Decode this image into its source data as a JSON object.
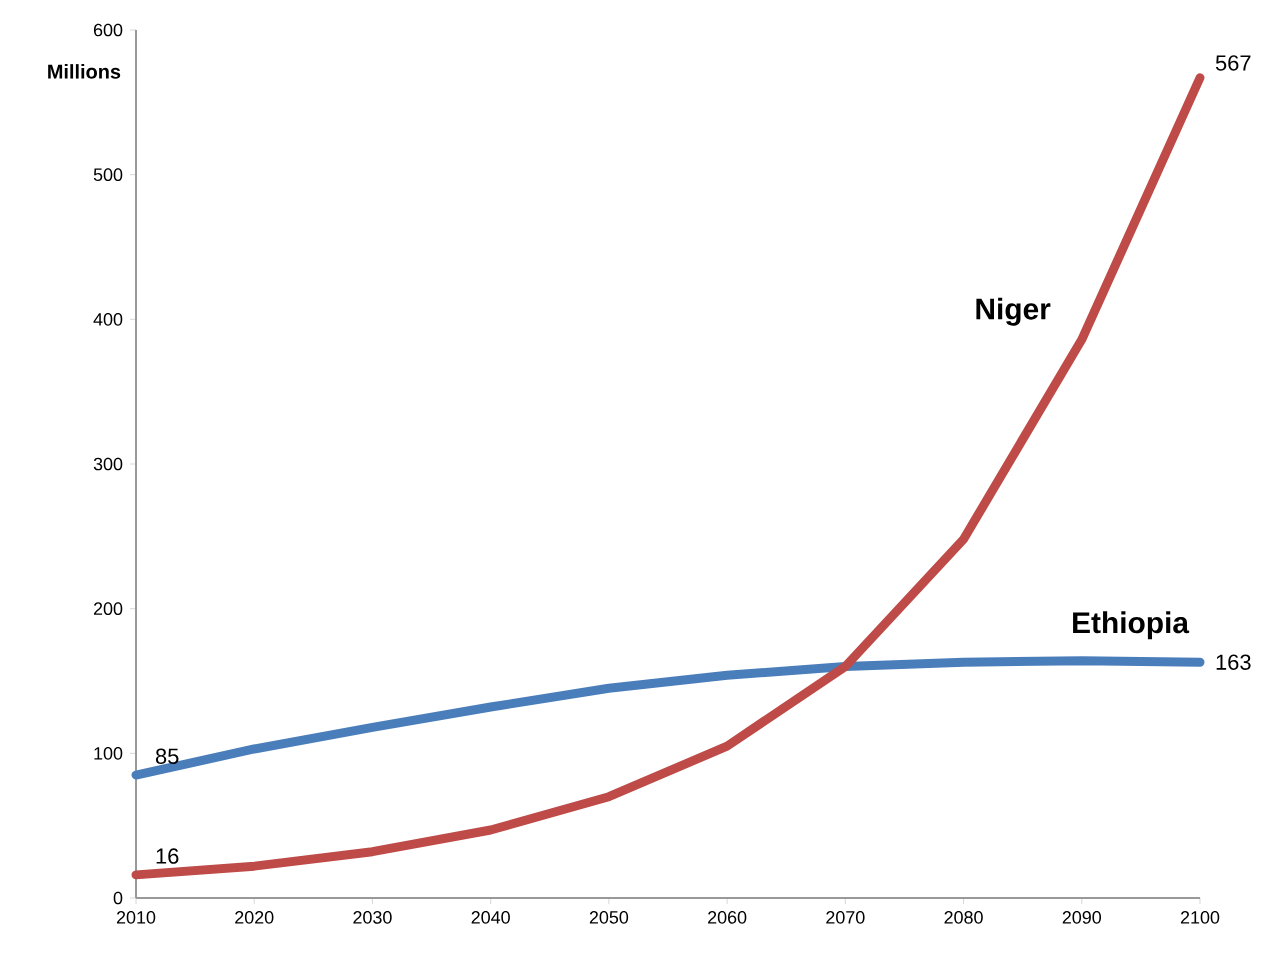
{
  "chart_data": {
    "type": "line",
    "ylabel": "Millions",
    "x": [
      2010,
      2020,
      2030,
      2040,
      2050,
      2060,
      2070,
      2080,
      2090,
      2100
    ],
    "xlim": [
      2010,
      2100
    ],
    "xticks": [
      2010,
      2020,
      2030,
      2040,
      2050,
      2060,
      2070,
      2080,
      2090,
      2100
    ],
    "ylim": [
      0,
      600
    ],
    "yticks": [
      0,
      100,
      200,
      300,
      400,
      500,
      600
    ],
    "grid": false,
    "legend": false,
    "marker": "none",
    "line_style": "solid",
    "series": [
      {
        "name": "Ethiopia",
        "color": "#4a7ebb",
        "values": [
          85,
          103,
          118,
          132,
          145,
          154,
          160,
          163,
          164,
          163
        ],
        "value_labels": [
          "85",
          null,
          null,
          null,
          null,
          null,
          null,
          null,
          null,
          "163"
        ]
      },
      {
        "name": "Niger",
        "color": "#be4b48",
        "values": [
          16,
          22,
          32,
          47,
          70,
          105,
          160,
          248,
          386,
          567
        ],
        "value_labels": [
          "16",
          null,
          null,
          null,
          null,
          null,
          null,
          null,
          null,
          "567"
        ]
      }
    ]
  }
}
